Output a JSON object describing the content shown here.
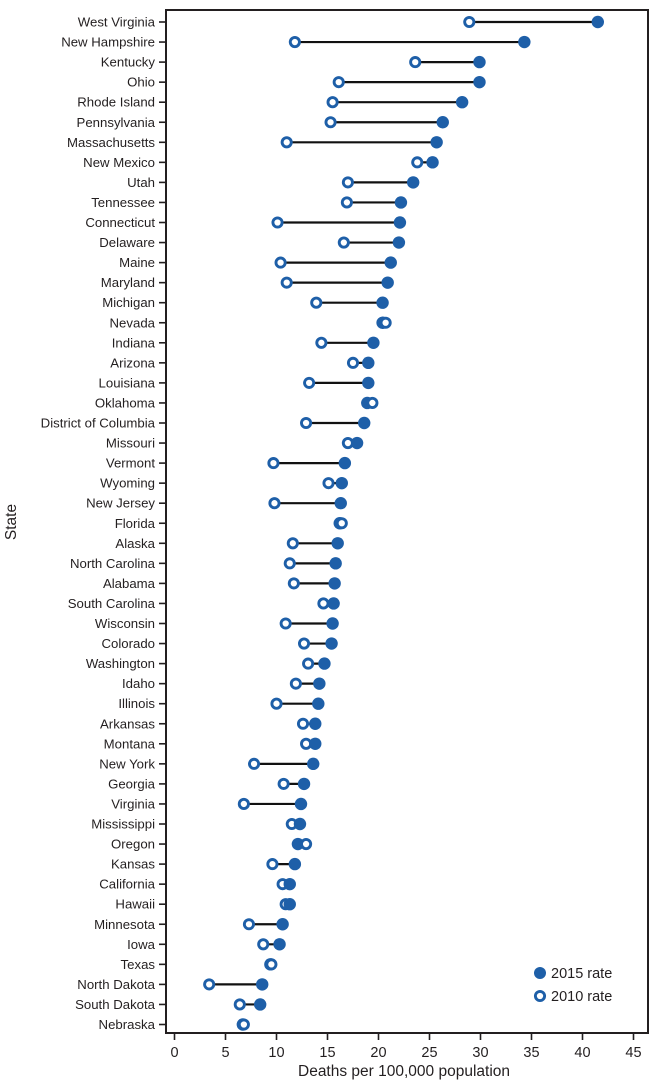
{
  "figure": {
    "kind": "dumbbell-dot-plot",
    "xlabel": "Deaths per 100,000 population",
    "ylabel": "State"
  },
  "colors": {
    "dot_blue": "#1e5fa8",
    "connector_black": "#111111",
    "axis_black": "#231f20",
    "background": "#ffffff"
  },
  "legend": [
    {
      "label": "2015 rate",
      "marker": "filled-circle"
    },
    {
      "label": "2010 rate",
      "marker": "open-circle"
    }
  ],
  "chart_data": {
    "type": "scatter",
    "subtype": "dumbbell",
    "title": "",
    "xlabel": "Deaths per 100,000 population",
    "ylabel": "State",
    "xlim": [
      0,
      45
    ],
    "xticks": [
      0,
      5,
      10,
      15,
      20,
      25,
      30,
      35,
      40,
      45
    ],
    "grid": false,
    "legend_position": "bottom-right-inside",
    "series": [
      {
        "name": "2015 rate",
        "marker": "filled-circle"
      },
      {
        "name": "2010 rate",
        "marker": "open-circle"
      }
    ],
    "states": [
      {
        "name": "West Virginia",
        "rate2010": 28.9,
        "rate2015": 41.5
      },
      {
        "name": "New Hampshire",
        "rate2010": 11.8,
        "rate2015": 34.3
      },
      {
        "name": "Kentucky",
        "rate2010": 23.6,
        "rate2015": 29.9
      },
      {
        "name": "Ohio",
        "rate2010": 16.1,
        "rate2015": 29.9
      },
      {
        "name": "Rhode Island",
        "rate2010": 15.5,
        "rate2015": 28.2
      },
      {
        "name": "Pennsylvania",
        "rate2010": 15.3,
        "rate2015": 26.3
      },
      {
        "name": "Massachusetts",
        "rate2010": 11.0,
        "rate2015": 25.7
      },
      {
        "name": "New Mexico",
        "rate2010": 23.8,
        "rate2015": 25.3
      },
      {
        "name": "Utah",
        "rate2010": 17.0,
        "rate2015": 23.4
      },
      {
        "name": "Tennessee",
        "rate2010": 16.9,
        "rate2015": 22.2
      },
      {
        "name": "Connecticut",
        "rate2010": 10.1,
        "rate2015": 22.1
      },
      {
        "name": "Delaware",
        "rate2010": 16.6,
        "rate2015": 22.0
      },
      {
        "name": "Maine",
        "rate2010": 10.4,
        "rate2015": 21.2
      },
      {
        "name": "Maryland",
        "rate2010": 11.0,
        "rate2015": 20.9
      },
      {
        "name": "Michigan",
        "rate2010": 13.9,
        "rate2015": 20.4
      },
      {
        "name": "Nevada",
        "rate2010": 20.7,
        "rate2015": 20.4
      },
      {
        "name": "Indiana",
        "rate2010": 14.4,
        "rate2015": 19.5
      },
      {
        "name": "Arizona",
        "rate2010": 17.5,
        "rate2015": 19.0
      },
      {
        "name": "Louisiana",
        "rate2010": 13.2,
        "rate2015": 19.0
      },
      {
        "name": "Oklahoma",
        "rate2010": 19.4,
        "rate2015": 18.9
      },
      {
        "name": "District of Columbia",
        "rate2010": 12.9,
        "rate2015": 18.6
      },
      {
        "name": "Missouri",
        "rate2010": 17.0,
        "rate2015": 17.9
      },
      {
        "name": "Vermont",
        "rate2010": 9.7,
        "rate2015": 16.7
      },
      {
        "name": "Wyoming",
        "rate2010": 15.1,
        "rate2015": 16.4
      },
      {
        "name": "New Jersey",
        "rate2010": 9.8,
        "rate2015": 16.3
      },
      {
        "name": "Florida",
        "rate2010": 16.4,
        "rate2015": 16.2
      },
      {
        "name": "Alaska",
        "rate2010": 11.6,
        "rate2015": 16.0
      },
      {
        "name": "North Carolina",
        "rate2010": 11.3,
        "rate2015": 15.8
      },
      {
        "name": "Alabama",
        "rate2010": 11.7,
        "rate2015": 15.7
      },
      {
        "name": "South Carolina",
        "rate2010": 14.6,
        "rate2015": 15.6
      },
      {
        "name": "Wisconsin",
        "rate2010": 10.9,
        "rate2015": 15.5
      },
      {
        "name": "Colorado",
        "rate2010": 12.7,
        "rate2015": 15.4
      },
      {
        "name": "Washington",
        "rate2010": 13.1,
        "rate2015": 14.7
      },
      {
        "name": "Idaho",
        "rate2010": 11.9,
        "rate2015": 14.2
      },
      {
        "name": "Illinois",
        "rate2010": 10.0,
        "rate2015": 14.1
      },
      {
        "name": "Arkansas",
        "rate2010": 12.6,
        "rate2015": 13.8
      },
      {
        "name": "Montana",
        "rate2010": 12.9,
        "rate2015": 13.8
      },
      {
        "name": "New York",
        "rate2010": 7.8,
        "rate2015": 13.6
      },
      {
        "name": "Georgia",
        "rate2010": 10.7,
        "rate2015": 12.7
      },
      {
        "name": "Virginia",
        "rate2010": 6.8,
        "rate2015": 12.4
      },
      {
        "name": "Mississippi",
        "rate2010": 11.5,
        "rate2015": 12.3
      },
      {
        "name": "Oregon",
        "rate2010": 12.9,
        "rate2015": 12.1
      },
      {
        "name": "Kansas",
        "rate2010": 9.6,
        "rate2015": 11.8
      },
      {
        "name": "California",
        "rate2010": 10.6,
        "rate2015": 11.3
      },
      {
        "name": "Hawaii",
        "rate2010": 10.9,
        "rate2015": 11.3
      },
      {
        "name": "Minnesota",
        "rate2010": 7.3,
        "rate2015": 10.6
      },
      {
        "name": "Iowa",
        "rate2010": 8.7,
        "rate2015": 10.3
      },
      {
        "name": "Texas",
        "rate2010": 9.5,
        "rate2015": 9.4
      },
      {
        "name": "North Dakota",
        "rate2010": 3.4,
        "rate2015": 8.6
      },
      {
        "name": "South Dakota",
        "rate2010": 6.4,
        "rate2015": 8.4
      },
      {
        "name": "Nebraska",
        "rate2010": 6.8,
        "rate2015": 6.7
      }
    ]
  }
}
